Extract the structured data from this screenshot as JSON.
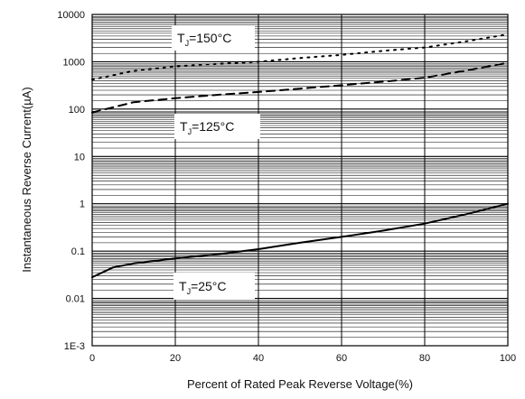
{
  "chart_data": {
    "type": "line",
    "xlabel": "Percent of Rated Peak Reverse Voltage(%)",
    "ylabel": "Instantaneous Reverse Current(µA)",
    "x_ticks": [
      "0",
      "20",
      "40",
      "60",
      "80",
      "100"
    ],
    "y_ticks": [
      "1E-3",
      "0.01",
      "0.1",
      "1",
      "10",
      "100",
      "1000",
      "10000"
    ],
    "xlim": [
      0,
      100
    ],
    "ylim": [
      0.001,
      10000
    ],
    "y_scale": "log",
    "grid": true,
    "series": [
      {
        "name": "TJ=150°C",
        "style": "dotted",
        "x": [
          0,
          10,
          20,
          30,
          40,
          50,
          60,
          70,
          80,
          90,
          100
        ],
        "y": [
          420,
          640,
          800,
          900,
          1000,
          1200,
          1400,
          1700,
          2000,
          2700,
          3800
        ]
      },
      {
        "name": "TJ=125°C",
        "style": "dashed",
        "x": [
          0,
          10,
          20,
          30,
          40,
          50,
          60,
          70,
          80,
          90,
          100
        ],
        "y": [
          85,
          140,
          170,
          200,
          230,
          270,
          320,
          380,
          460,
          650,
          950
        ]
      },
      {
        "name": "TJ=25°C",
        "style": "solid",
        "x": [
          0,
          5,
          10,
          20,
          30,
          40,
          50,
          60,
          70,
          80,
          90,
          100
        ],
        "y": [
          0.028,
          0.045,
          0.055,
          0.07,
          0.085,
          0.11,
          0.15,
          0.2,
          0.27,
          0.38,
          0.6,
          1.0
        ]
      }
    ],
    "annotations": [
      {
        "main": "T",
        "sub": "J",
        "rest": "=150°C"
      },
      {
        "main": "T",
        "sub": "J",
        "rest": "=125°C"
      },
      {
        "main": "T",
        "sub": "J",
        "rest": "=25°C"
      }
    ]
  }
}
